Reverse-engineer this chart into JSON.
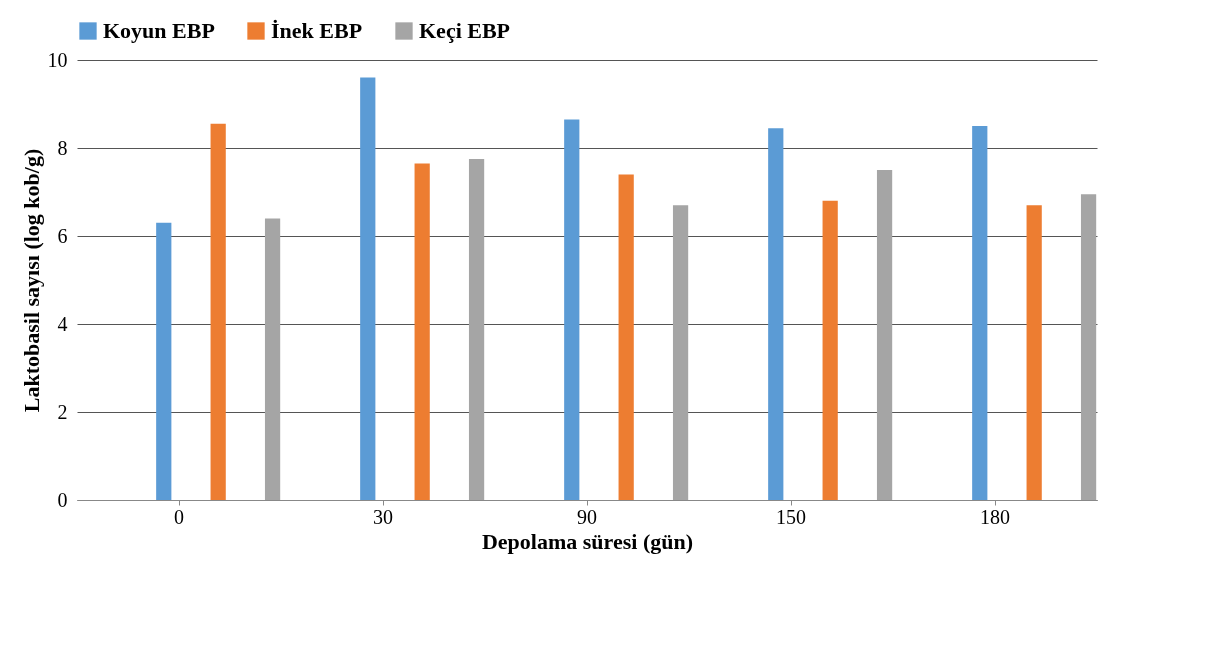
{
  "chart_data": {
    "type": "bar",
    "xlabel": "Depolama süresi (gün)",
    "ylabel": "Laktobasil sayısı (log kob/g)",
    "categories": [
      "0",
      "30",
      "90",
      "150",
      "180"
    ],
    "series": [
      {
        "name": "Koyun EBP",
        "color": "#5b9bd5",
        "values": [
          6.3,
          9.6,
          8.65,
          8.45,
          8.5
        ]
      },
      {
        "name": "İnek EBP",
        "color": "#ed7d31",
        "values": [
          8.55,
          7.65,
          7.4,
          6.8,
          6.7
        ]
      },
      {
        "name": "Keçi EBP",
        "color": "#a5a5a5",
        "values": [
          6.4,
          7.75,
          6.7,
          7.5,
          6.95
        ]
      }
    ],
    "ylim": [
      0,
      10
    ],
    "yticks": [
      0,
      2,
      4,
      6,
      8,
      10
    ],
    "grid": "y",
    "legend": "top"
  }
}
